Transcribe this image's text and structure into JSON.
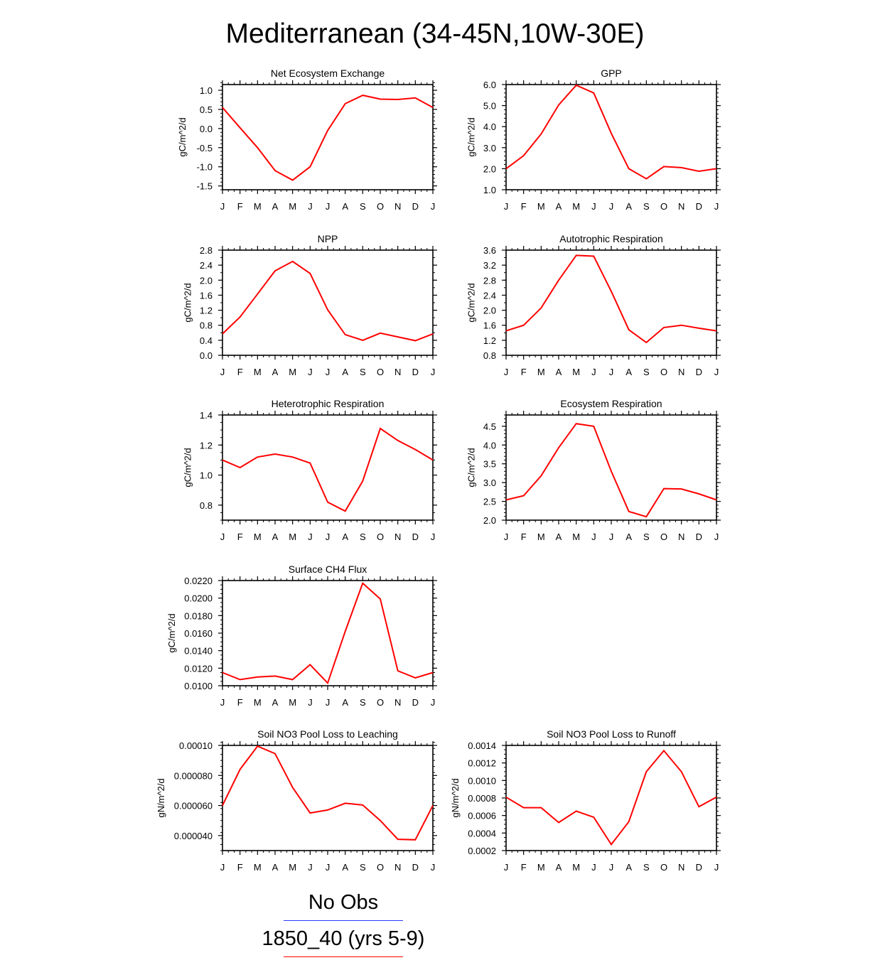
{
  "title": "Mediterranean (34-45N,10W-30E)",
  "months": [
    "J",
    "F",
    "M",
    "A",
    "M",
    "J",
    "J",
    "A",
    "S",
    "O",
    "N",
    "D",
    "J"
  ],
  "legend": [
    {
      "label": "No Obs",
      "color": "#2a3aff"
    },
    {
      "label": "1850_40 (yrs 5-9)",
      "color": "#ff0000"
    }
  ],
  "series_color": "#ff0000",
  "chart_data": [
    {
      "type": "line",
      "title": "Net Ecosystem Exchange",
      "ylabel": "gC/m^2/d",
      "ylim": [
        -1.6,
        1.15
      ],
      "yticks": [
        1.0,
        0.5,
        0.0,
        -0.5,
        -1.0,
        -1.5
      ],
      "ytick_labels": [
        "1.0",
        "0.5",
        "0.0",
        "-0.5",
        "-1.0",
        "-1.5"
      ],
      "minor_step": 0.1,
      "values": [
        0.55,
        0.02,
        -0.5,
        -1.1,
        -1.35,
        -1.0,
        -0.05,
        0.65,
        0.87,
        0.77,
        0.76,
        0.8,
        0.55
      ]
    },
    {
      "type": "line",
      "title": "GPP",
      "ylabel": "gC/m^2/d",
      "ylim": [
        1.0,
        6.0
      ],
      "yticks": [
        6.0,
        5.0,
        4.0,
        3.0,
        2.0,
        1.0
      ],
      "ytick_labels": [
        "6.0",
        "5.0",
        "4.0",
        "3.0",
        "2.0",
        "1.0"
      ],
      "minor_step": 0.2,
      "values": [
        2.0,
        2.62,
        3.65,
        5.03,
        5.97,
        5.6,
        3.68,
        2.0,
        1.52,
        2.1,
        2.05,
        1.88,
        2.0
      ]
    },
    {
      "type": "line",
      "title": "NPP",
      "ylabel": "gC/m^2/d",
      "ylim": [
        0.0,
        2.8
      ],
      "yticks": [
        2.8,
        2.4,
        2.0,
        1.6,
        1.2,
        0.8,
        0.4,
        0.0
      ],
      "ytick_labels": [
        "2.8",
        "2.4",
        "2.0",
        "1.6",
        "1.2",
        "0.8",
        "0.4",
        "0.0"
      ],
      "minor_step": 0.2,
      "values": [
        0.57,
        1.02,
        1.63,
        2.25,
        2.5,
        2.18,
        1.21,
        0.55,
        0.4,
        0.59,
        0.49,
        0.39,
        0.57
      ]
    },
    {
      "type": "line",
      "title": "Autotrophic Respiration",
      "ylabel": "gC/m^2/d",
      "ylim": [
        0.8,
        3.6
      ],
      "yticks": [
        3.6,
        3.2,
        2.8,
        2.4,
        2.0,
        1.6,
        1.2,
        0.8
      ],
      "ytick_labels": [
        "3.6",
        "3.2",
        "2.8",
        "2.4",
        "2.0",
        "1.6",
        "1.2",
        "0.8"
      ],
      "minor_step": 0.2,
      "values": [
        1.45,
        1.6,
        2.06,
        2.8,
        3.46,
        3.44,
        2.5,
        1.48,
        1.14,
        1.54,
        1.6,
        1.52,
        1.45
      ]
    },
    {
      "type": "line",
      "title": "Heterotrophic Respiration",
      "ylabel": "gC/m^2/d",
      "ylim": [
        0.7,
        1.4
      ],
      "yticks": [
        1.4,
        1.2,
        1.0,
        0.8
      ],
      "ytick_labels": [
        "1.4",
        "1.2",
        "1.0",
        "0.8"
      ],
      "minor_step": 0.05,
      "values": [
        1.1,
        1.05,
        1.12,
        1.14,
        1.12,
        1.08,
        0.82,
        0.76,
        0.96,
        1.31,
        1.23,
        1.17,
        1.1
      ]
    },
    {
      "type": "line",
      "title": "Ecosystem Respiration",
      "ylabel": "gC/m^2/d",
      "ylim": [
        2.0,
        4.8
      ],
      "yticks": [
        4.5,
        4.0,
        3.5,
        3.0,
        2.5,
        2.0
      ],
      "ytick_labels": [
        "4.5",
        "4.0",
        "3.5",
        "3.0",
        "2.5",
        "2.0"
      ],
      "minor_step": 0.1,
      "values": [
        2.54,
        2.65,
        3.18,
        3.93,
        4.57,
        4.5,
        3.3,
        2.23,
        2.09,
        2.84,
        2.83,
        2.7,
        2.54
      ]
    },
    {
      "type": "line",
      "title": "Surface CH4 Flux",
      "ylabel": "gC/m^2/d",
      "ylim": [
        0.01,
        0.022
      ],
      "yticks": [
        0.022,
        0.02,
        0.018,
        0.016,
        0.014,
        0.012,
        0.01
      ],
      "ytick_labels": [
        "0.0220",
        "0.0200",
        "0.0180",
        "0.0160",
        "0.0140",
        "0.0120",
        "0.0100"
      ],
      "minor_step": 0.0005,
      "values": [
        0.0115,
        0.0107,
        0.011,
        0.0111,
        0.0107,
        0.0124,
        0.0103,
        0.0162,
        0.0217,
        0.0199,
        0.0117,
        0.0109,
        0.0115
      ]
    },
    {
      "type": "line",
      "title": "Soil NO3 Pool Loss to Leaching",
      "ylabel": "gN/m^2/d",
      "ylim": [
        3e-05,
        0.0001
      ],
      "yticks": [
        0.0001,
        8e-05,
        6e-05,
        4e-05
      ],
      "ytick_labels": [
        "0.00010",
        "0.000080",
        "0.000060",
        "0.000040"
      ],
      "minor_step": 4e-06,
      "values": [
        6e-05,
        8.4e-05,
        9.95e-05,
        9.45e-05,
        7.2e-05,
        5.5e-05,
        5.7e-05,
        6.15e-05,
        6.03e-05,
        5e-05,
        3.75e-05,
        3.72e-05,
        6e-05
      ]
    },
    {
      "type": "line",
      "title": "Soil NO3 Pool Loss to Runoff",
      "ylabel": "gN/m^2/d",
      "ylim": [
        0.0002,
        0.0014
      ],
      "yticks": [
        0.0014,
        0.0012,
        0.001,
        0.0008,
        0.0006,
        0.0004,
        0.0002
      ],
      "ytick_labels": [
        "0.0014",
        "0.0012",
        "0.0010",
        "0.0008",
        "0.0006",
        "0.0004",
        "0.0002"
      ],
      "minor_step": 5e-05,
      "values": [
        0.00081,
        0.00069,
        0.00069,
        0.00052,
        0.00065,
        0.00058,
        0.00027,
        0.00053,
        0.0011,
        0.00134,
        0.0011,
        0.0007,
        0.00081
      ]
    }
  ]
}
